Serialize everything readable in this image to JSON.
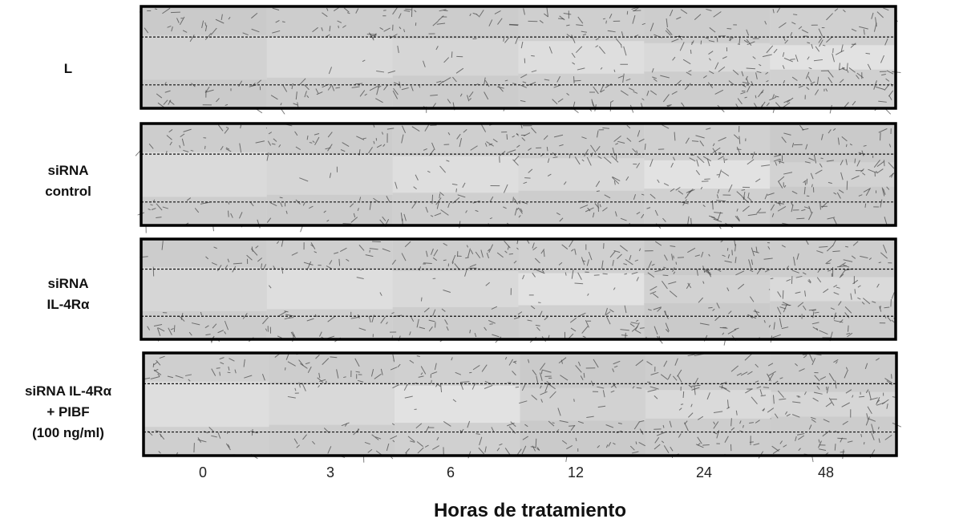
{
  "rows": [
    {
      "label": [
        "L"
      ]
    },
    {
      "label": [
        "siRNA",
        "control"
      ]
    },
    {
      "label": [
        "siRNA",
        "IL-4Rα"
      ]
    },
    {
      "label": [
        "siRNA IL-4Rα",
        "+ PIBF",
        "(100 ng/ml)"
      ]
    }
  ],
  "columns": [
    "0",
    "3",
    "6",
    "12",
    "24",
    "48"
  ],
  "axis_title": "Horas de tratamiento"
}
